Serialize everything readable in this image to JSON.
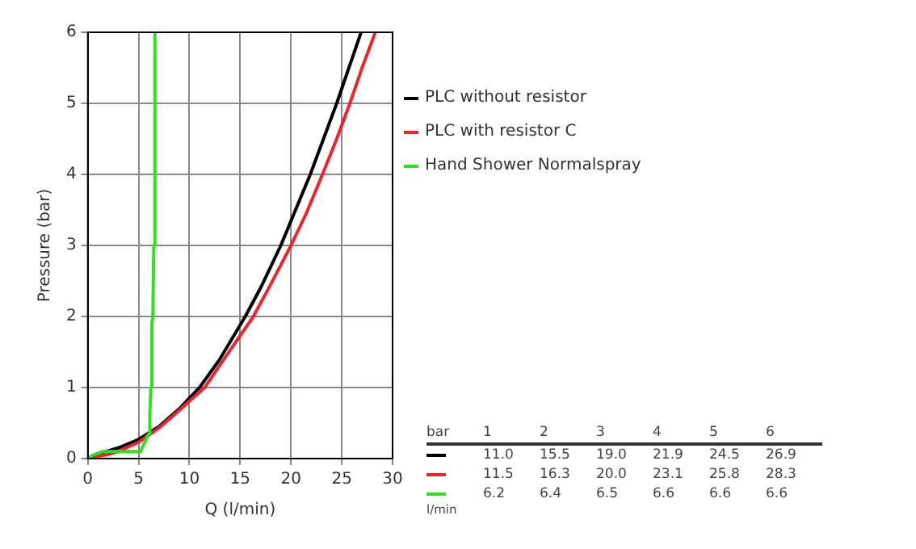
{
  "chart_data": {
    "type": "line",
    "xlabel": "Q (l/min)",
    "ylabel": "Pressure (bar)",
    "xlim": [
      0,
      30
    ],
    "xticks": [
      0,
      5,
      10,
      15,
      20,
      25,
      30
    ],
    "ylim": [
      0,
      6
    ],
    "yticks": [
      0,
      1,
      2,
      3,
      4,
      5,
      6
    ],
    "grid": true,
    "legend": "right",
    "marker": "none",
    "line_style": "solid",
    "series": [
      {
        "name": "PLC without resistor",
        "color": "#000000",
        "x": [
          0,
          1,
          2,
          3,
          5,
          7,
          9,
          11.0,
          13,
          15.5,
          17,
          19.0,
          21.9,
          24.5,
          26.9
        ],
        "values": [
          0,
          0.07,
          0.11,
          0.15,
          0.27,
          0.45,
          0.7,
          1,
          1.4,
          2,
          2.4,
          3,
          4,
          5,
          6
        ]
      },
      {
        "name": "PLC with resistor C",
        "color": "#e8262b",
        "x": [
          0,
          1,
          2,
          3,
          5,
          7,
          9,
          11.5,
          13.5,
          16.3,
          18,
          20.0,
          21.5,
          23.1,
          24.5,
          25.8,
          27,
          28.3
        ],
        "values": [
          0,
          0.03,
          0.06,
          0.1,
          0.23,
          0.43,
          0.68,
          1,
          1.42,
          2,
          2.45,
          3,
          3.45,
          4,
          4.5,
          5,
          5.5,
          6
        ]
      },
      {
        "name": "Hand Shower Normalspray",
        "color": "#33dd22",
        "x": [
          0,
          0.5,
          1.5,
          3,
          5.2,
          5.5,
          6.0,
          6.1,
          6.2,
          6.3,
          6.4,
          6.5,
          6.6
        ],
        "values": [
          0,
          0.05,
          0.1,
          0.1,
          0.1,
          0.2,
          0.35,
          0.6,
          1,
          1.9,
          2,
          3,
          6
        ]
      }
    ],
    "annotations": [
      "bar",
      "1",
      "2",
      "3",
      "4",
      "5",
      "6",
      "11.0",
      "15.5",
      "19.0",
      "21.9",
      "24.5",
      "26.9",
      "11.5",
      "16.3",
      "20.0",
      "23.1",
      "25.8",
      "28.3",
      "6.2",
      "6.4",
      "6.5",
      "6.6",
      "6.6",
      "6.6",
      "l/min"
    ]
  }
}
